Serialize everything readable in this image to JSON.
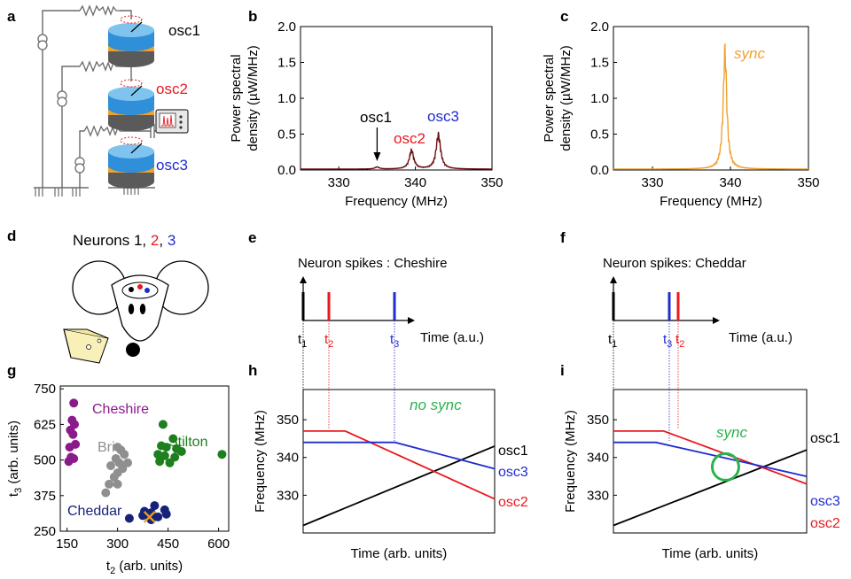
{
  "panel_letters": [
    "a",
    "b",
    "c",
    "d",
    "e",
    "f",
    "g",
    "h",
    "i"
  ],
  "panel_a": {
    "osc_labels": [
      "osc1",
      "osc2",
      "osc3"
    ],
    "colors": [
      "#000000",
      "#e8191d",
      "#1f2ccf"
    ]
  },
  "panel_d": {
    "title_prefix": "Neurons 1, ",
    "n2": "2",
    "sep": ", ",
    "n3": "3"
  },
  "panel_e": {
    "title": "Neuron spikes : Cheshire",
    "xlabel": "Time (a.u.)",
    "t1": "t",
    "t1_sub": "1",
    "t2": "t",
    "t2_sub": "2",
    "t3": "t",
    "t3_sub": "3"
  },
  "panel_f": {
    "title": "Neuron spikes: Cheddar",
    "xlabel": "Time (a.u.)",
    "t1": "t",
    "t1_sub": "1",
    "t3": "t",
    "t3_sub": "3",
    "t2": "t",
    "t2_sub": "2"
  },
  "chart_data": [
    {
      "id": "b",
      "type": "line",
      "xlabel": "Frequency (MHz)",
      "ylabel_line1": "Power spectral",
      "ylabel_line2": "density (µW/MHz)",
      "xlim": [
        325,
        350
      ],
      "ylim": [
        0,
        2.0
      ],
      "xticks": [
        "330",
        "340",
        "350"
      ],
      "yticks": [
        "0.0",
        "0.5",
        "1.0",
        "1.5",
        "2.0"
      ],
      "color": "#6d1212",
      "peaks": [
        {
          "name": "osc1",
          "x": 335,
          "y": 0.03
        },
        {
          "name": "osc2",
          "x": 339.5,
          "y": 0.28
        },
        {
          "name": "osc3",
          "x": 343,
          "y": 0.52
        }
      ],
      "annotations": [
        "osc1",
        "osc2",
        "osc3"
      ]
    },
    {
      "id": "c",
      "type": "line",
      "xlabel": "Frequency (MHz)",
      "ylabel_line1": "Power spectral",
      "ylabel_line2": "density (µW/MHz)",
      "xlim": [
        325,
        350
      ],
      "ylim": [
        0,
        2.0
      ],
      "xticks": [
        "330",
        "340",
        "350"
      ],
      "yticks": [
        "0.0",
        "0.5",
        "1.0",
        "1.5",
        "2.0"
      ],
      "color": "#f0a030",
      "peaks": [
        {
          "name": "sync",
          "x": 339.3,
          "y": 1.78
        }
      ],
      "annotation": "sync"
    },
    {
      "id": "g",
      "type": "scatter",
      "xlabel": "t",
      "xlabel_sub": "2",
      "xlabel_rest": " (arb. units)",
      "ylabel": "t",
      "ylabel_sub": "3",
      "ylabel_rest": " (arb. units)",
      "xlim": [
        130,
        630
      ],
      "ylim": [
        250,
        760
      ],
      "xticks": [
        "150",
        "300",
        "450",
        "600"
      ],
      "yticks": [
        "250",
        "375",
        "500",
        "625",
        "750"
      ],
      "series": [
        {
          "name": "Cheshire",
          "color": "#8b1a8b",
          "points": [
            [
              170,
              700
            ],
            [
              165,
              640
            ],
            [
              172,
              625
            ],
            [
              160,
              605
            ],
            [
              168,
              590
            ],
            [
              175,
              555
            ],
            [
              158,
              545
            ],
            [
              162,
              510
            ],
            [
              170,
              505
            ],
            [
              155,
              495
            ]
          ]
        },
        {
          "name": "Brie",
          "color": "#8f8f8f",
          "points": [
            [
              300,
              545
            ],
            [
              310,
              535
            ],
            [
              320,
              520
            ],
            [
              295,
              505
            ],
            [
              305,
              490
            ],
            [
              330,
              490
            ],
            [
              280,
              480
            ],
            [
              315,
              470
            ],
            [
              300,
              455
            ],
            [
              290,
              440
            ],
            [
              275,
              415
            ],
            [
              300,
              415
            ],
            [
              265,
              385
            ]
          ]
        },
        {
          "name": "Stilton",
          "color": "#1d7f1d",
          "points": [
            [
              435,
              625
            ],
            [
              465,
              575
            ],
            [
              430,
              550
            ],
            [
              445,
              545
            ],
            [
              475,
              540
            ],
            [
              490,
              530
            ],
            [
              420,
              520
            ],
            [
              440,
              515
            ],
            [
              470,
              510
            ],
            [
              425,
              495
            ],
            [
              455,
              490
            ],
            [
              610,
              520
            ]
          ]
        },
        {
          "name": "Cheddar",
          "color": "#16237a",
          "points": [
            [
              410,
              340
            ],
            [
              440,
              325
            ],
            [
              380,
              320
            ],
            [
              400,
              315
            ],
            [
              375,
              305
            ],
            [
              395,
              300
            ],
            [
              420,
              300
            ],
            [
              445,
              310
            ],
            [
              335,
              295
            ],
            [
              400,
              290
            ]
          ]
        }
      ],
      "marker": {
        "x": 395,
        "y": 300,
        "color": "#e8a020"
      }
    },
    {
      "id": "h",
      "type": "line",
      "xlabel": "Time (arb. units)",
      "ylabel": "Frequency (MHz)",
      "ylim": [
        320,
        358
      ],
      "yticks": [
        "330",
        "340",
        "350"
      ],
      "annotation": "no sync",
      "series": [
        {
          "name": "osc1",
          "color": "#000000",
          "x": [
            0,
            1
          ],
          "y": [
            322,
            343
          ]
        },
        {
          "name": "osc2",
          "color": "#e8191d",
          "x": [
            0,
            0.22,
            1
          ],
          "y": [
            347,
            347,
            329
          ]
        },
        {
          "name": "osc3",
          "color": "#1f2ccf",
          "x": [
            0,
            0.48,
            1
          ],
          "y": [
            344,
            344,
            337
          ]
        }
      ]
    },
    {
      "id": "i",
      "type": "line",
      "xlabel": "Time (arb. units)",
      "ylabel": "Frequency (MHz)",
      "ylim": [
        320,
        358
      ],
      "yticks": [
        "330",
        "340",
        "350"
      ],
      "annotation": "sync",
      "series": [
        {
          "name": "osc1",
          "color": "#000000",
          "x": [
            0,
            1
          ],
          "y": [
            322,
            342
          ]
        },
        {
          "name": "osc2",
          "color": "#e8191d",
          "x": [
            0,
            0.26,
            1
          ],
          "y": [
            347,
            347,
            333
          ]
        },
        {
          "name": "osc3",
          "color": "#1f2ccf",
          "x": [
            0,
            0.22,
            1
          ],
          "y": [
            344,
            344,
            335
          ]
        }
      ],
      "sync_circle": {
        "x": 0.58,
        "y": 337.5
      }
    }
  ]
}
